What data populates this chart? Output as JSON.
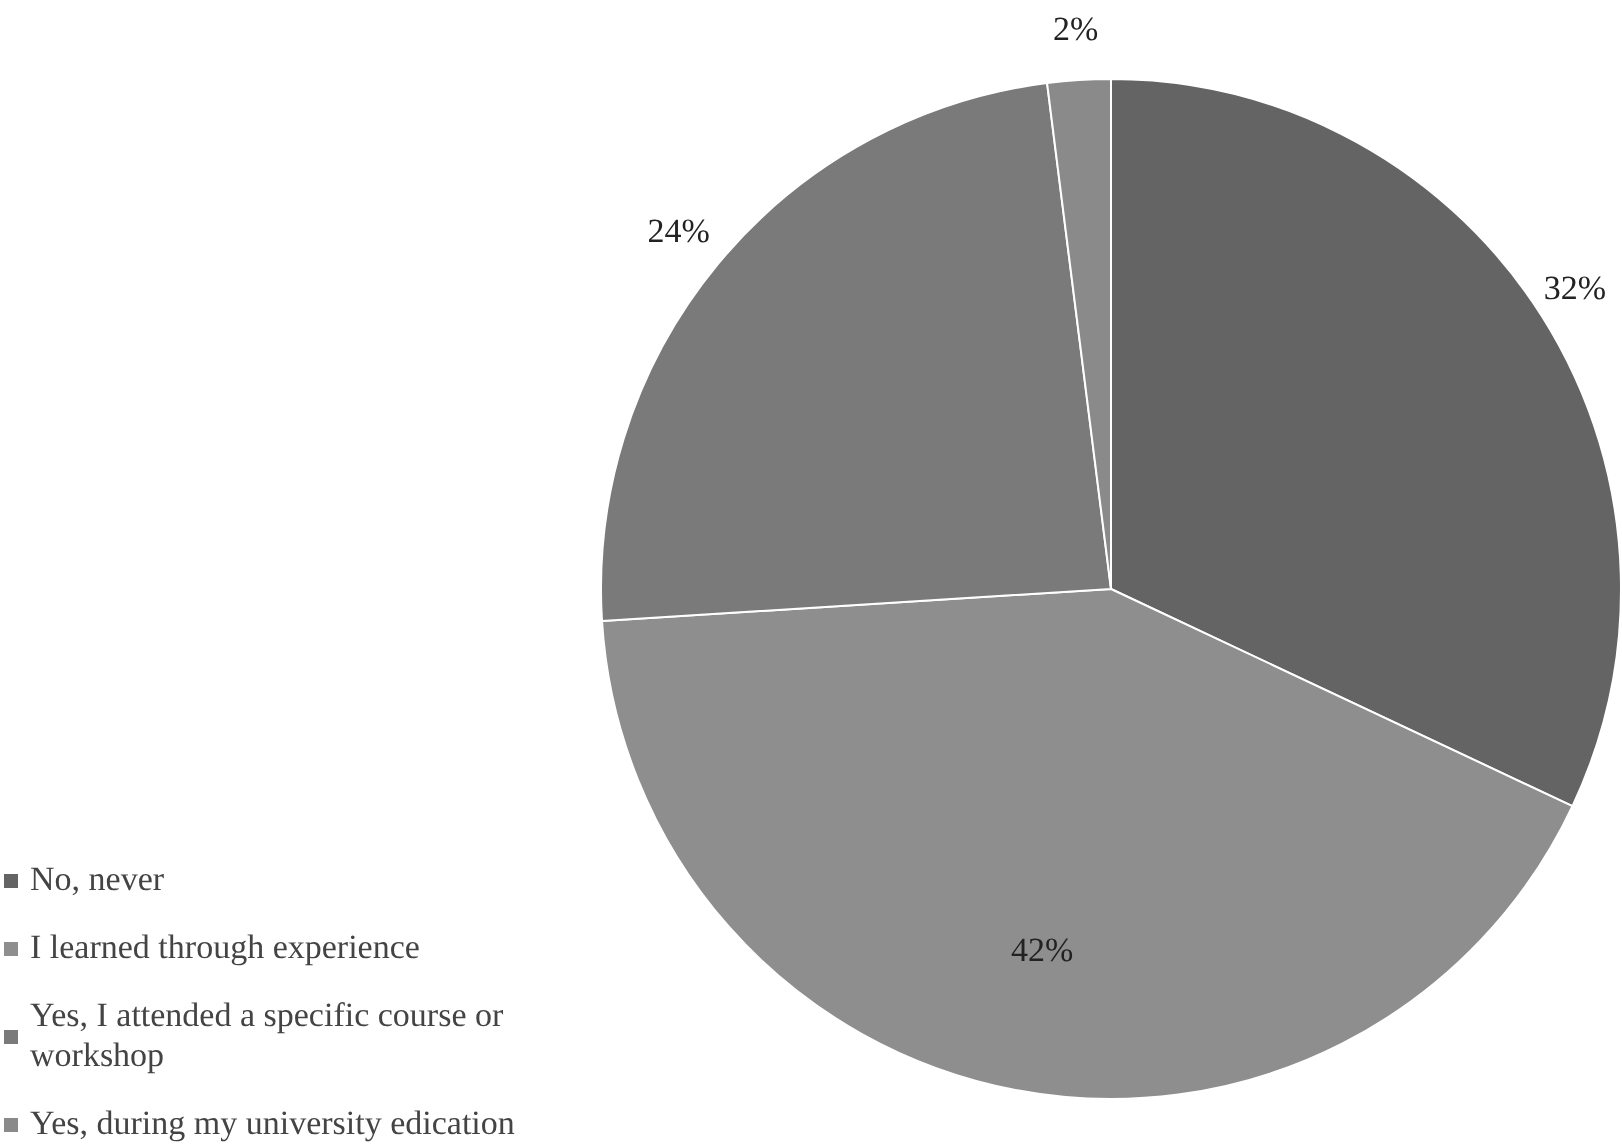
{
  "chart_data": {
    "type": "pie",
    "categories": [
      "No, never",
      "I learned through experience",
      "Yes, I attended a specific course or workshop",
      "Yes, during my university edication"
    ],
    "values": [
      32,
      42,
      24,
      2
    ],
    "colors": [
      "#646464",
      "#8e8e8e",
      "#7a7a7a",
      "#8a8a8a"
    ],
    "value_labels": [
      "32%",
      "42%",
      "24%",
      "2%"
    ],
    "legend": "bottom left"
  }
}
